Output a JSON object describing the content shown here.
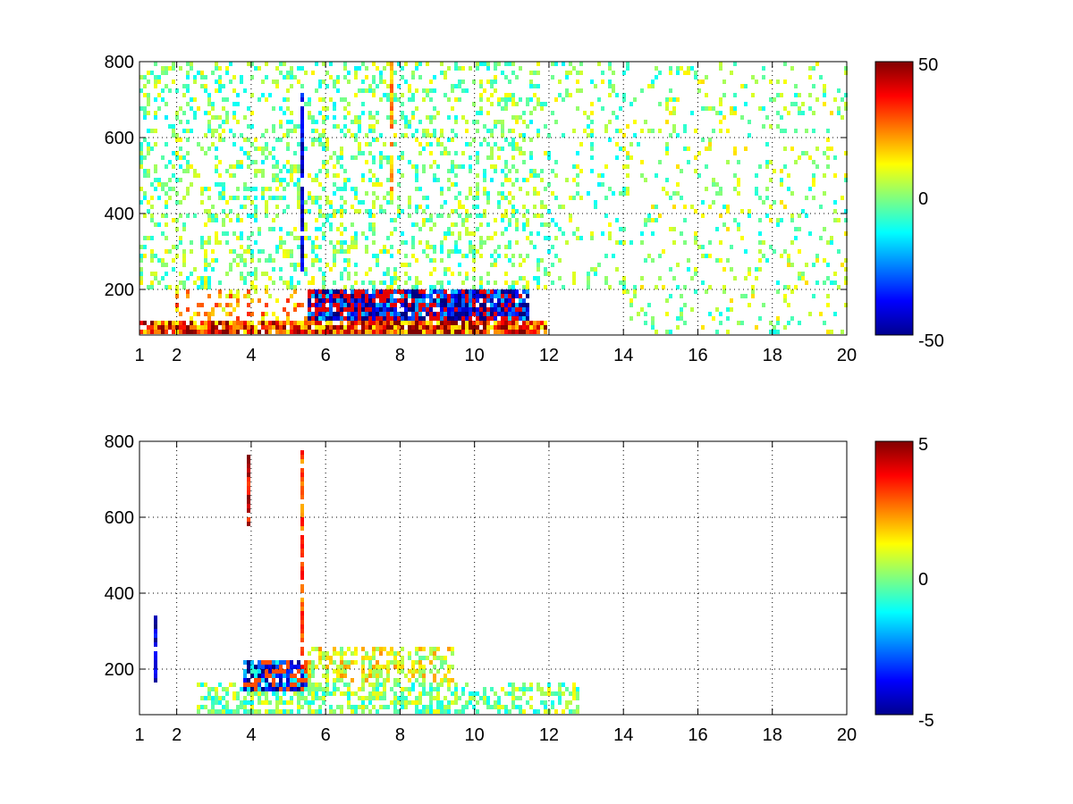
{
  "figure": {
    "background": "#ffffff",
    "colormap": "jet",
    "colormap_stops": [
      "#00008f",
      "#0000ff",
      "#00ffff",
      "#ffff00",
      "#ff0000",
      "#800000"
    ],
    "empty_color": "#ffffff"
  },
  "chart_data": [
    {
      "type": "heatmap",
      "title": "",
      "xlabel": "",
      "ylabel": "",
      "xlim": [
        1,
        20
      ],
      "ylim": [
        80,
        800
      ],
      "xticks": [
        1,
        2,
        4,
        6,
        8,
        10,
        12,
        14,
        16,
        18,
        20
      ],
      "xtick_labels": [
        "1",
        "2",
        "4",
        "6",
        "8",
        "10",
        "12",
        "14",
        "16",
        "18",
        "20"
      ],
      "yticks": [
        200,
        400,
        600,
        800
      ],
      "ytick_labels": [
        "200",
        "400",
        "600",
        "800"
      ],
      "grid": true,
      "colorbar": {
        "clim": [
          -50,
          50
        ],
        "ticks": [
          -50,
          0,
          50
        ],
        "tick_labels": [
          "-50",
          "0",
          "50"
        ]
      },
      "data_regions": [
        {
          "x": [
            1,
            12
          ],
          "y": [
            80,
            120
          ],
          "level": 35,
          "note": "strong red band near bottom"
        },
        {
          "x": [
            5.5,
            11.5
          ],
          "y": [
            80,
            200
          ],
          "level": -40,
          "note": "mixed strong blue/red cluster"
        },
        {
          "x": [
            2,
            6
          ],
          "y": [
            120,
            200
          ],
          "level": 20,
          "note": "yellow/orange band"
        },
        {
          "x": [
            1,
            14
          ],
          "y": [
            200,
            800
          ],
          "level": 0,
          "note": "sparse low-amplitude vertical streaks"
        },
        {
          "x": [
            14,
            20
          ],
          "y": [
            80,
            800
          ],
          "level": 2,
          "note": "sparse green/cyan streaks"
        }
      ],
      "streaks": [
        {
          "x": 5.35,
          "y": [
            250,
            720
          ],
          "level": -40
        },
        {
          "x": 7.8,
          "y": [
            430,
            800
          ],
          "level": 20
        }
      ]
    },
    {
      "type": "heatmap",
      "title": "",
      "xlabel": "",
      "ylabel": "",
      "xlim": [
        1,
        20
      ],
      "ylim": [
        80,
        800
      ],
      "xticks": [
        1,
        2,
        4,
        6,
        8,
        10,
        12,
        14,
        16,
        18,
        20
      ],
      "xtick_labels": [
        "1",
        "2",
        "4",
        "6",
        "8",
        "10",
        "12",
        "14",
        "16",
        "18",
        "20"
      ],
      "yticks": [
        200,
        400,
        600,
        800
      ],
      "ytick_labels": [
        "200",
        "400",
        "600",
        "800"
      ],
      "grid": true,
      "colorbar": {
        "clim": [
          -5,
          5
        ],
        "ticks": [
          -5,
          0,
          5
        ],
        "tick_labels": [
          "-5",
          "0",
          "5"
        ]
      },
      "data_regions": [
        {
          "x": [
            2.5,
            12.8
          ],
          "y": [
            80,
            160
          ],
          "level": 0,
          "note": "low-amplitude green band"
        },
        {
          "x": [
            3.8,
            5.5
          ],
          "y": [
            140,
            220
          ],
          "level": -3,
          "note": "blue patch"
        },
        {
          "x": [
            5.5,
            9.5
          ],
          "y": [
            150,
            260
          ],
          "level": 1,
          "note": "yellow/green patch"
        }
      ],
      "streaks": [
        {
          "x": 5.35,
          "y": [
            200,
            780
          ],
          "level": 3
        },
        {
          "x": 3.95,
          "y": [
            560,
            770
          ],
          "level": 4
        },
        {
          "x": 1.4,
          "y": [
            160,
            340
          ],
          "level": -4
        }
      ]
    }
  ]
}
